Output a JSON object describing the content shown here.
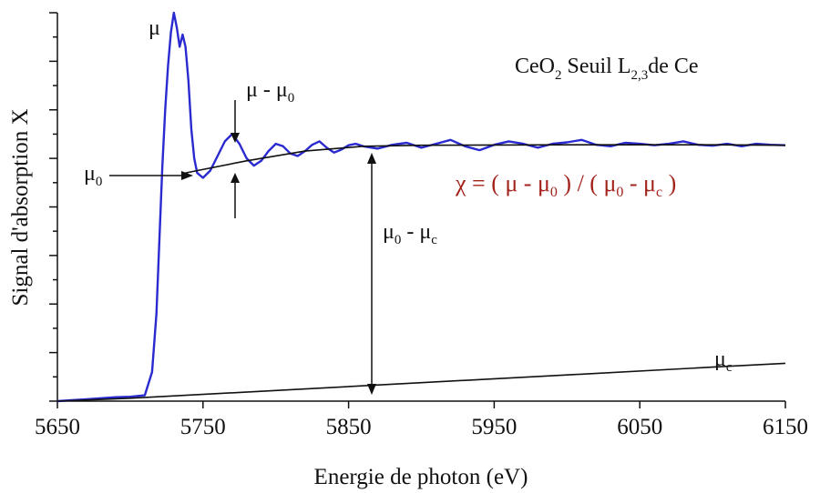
{
  "chart_data": {
    "type": "line",
    "title": "",
    "xlabel": "Energie de photon (eV)",
    "ylabel": "Signal d'absorption X",
    "xlim": [
      5650,
      6150
    ],
    "ylim": [
      0,
      8
    ],
    "x_ticks": [
      "5650",
      "5750",
      "5850",
      "5950",
      "6050",
      "6150"
    ],
    "y_tick_count": 9,
    "y_tick_labels_shown": false,
    "grid": false,
    "series": [
      {
        "name": "",
        "color": "#2a2ad0",
        "x": [
          5650,
          5670,
          5690,
          5700,
          5710,
          5715,
          5718,
          5720,
          5722,
          5724,
          5726,
          5728,
          5730,
          5732,
          5734,
          5736,
          5738,
          5740,
          5742,
          5744,
          5746,
          5748,
          5750,
          5755,
          5760,
          5765,
          5770,
          5775,
          5780,
          5785,
          5790,
          5795,
          5800,
          5805,
          5810,
          5815,
          5820,
          5825,
          5830,
          5835,
          5840,
          5845,
          5850,
          5855,
          5860,
          5870,
          5880,
          5890,
          5900,
          5910,
          5920,
          5930,
          5940,
          5950,
          5960,
          5970,
          5980,
          5990,
          6000,
          6010,
          6020,
          6030,
          6040,
          6050,
          6060,
          6070,
          6080,
          6090,
          6100,
          6110,
          6120,
          6130,
          6140,
          6150
        ],
        "y": [
          0.0,
          0.04,
          0.08,
          0.09,
          0.12,
          0.6,
          1.8,
          3.3,
          4.8,
          6.0,
          6.9,
          7.6,
          8.0,
          7.7,
          7.3,
          7.55,
          7.3,
          6.6,
          5.6,
          5.0,
          4.7,
          4.65,
          4.6,
          4.75,
          5.05,
          5.35,
          5.5,
          5.3,
          5.0,
          4.85,
          4.95,
          5.15,
          5.3,
          5.25,
          5.1,
          5.05,
          5.15,
          5.28,
          5.35,
          5.22,
          5.12,
          5.18,
          5.27,
          5.3,
          5.25,
          5.2,
          5.28,
          5.32,
          5.22,
          5.3,
          5.38,
          5.25,
          5.17,
          5.28,
          5.35,
          5.3,
          5.22,
          5.3,
          5.33,
          5.38,
          5.28,
          5.25,
          5.32,
          5.3,
          5.27,
          5.3,
          5.35,
          5.28,
          5.26,
          5.3,
          5.25,
          5.3,
          5.28,
          5.27
        ]
      },
      {
        "name": "",
        "color": "#111111",
        "x": [
          5738,
          5780,
          5820,
          5860,
          5900,
          6000,
          6100,
          6150
        ],
        "y": [
          4.7,
          4.95,
          5.15,
          5.25,
          5.27,
          5.28,
          5.28,
          5.27
        ]
      },
      {
        "name": "",
        "color": "#111111",
        "x": [
          5650,
          5700,
          5800,
          5900,
          6000,
          6100,
          6150
        ],
        "y": [
          0.0,
          0.06,
          0.22,
          0.38,
          0.54,
          0.7,
          0.78
        ]
      }
    ],
    "annotations": {
      "sample": "CeO",
      "sample_subscript": "2",
      "edge_text": " Seuil L",
      "edge_subscript": "2,3",
      "edge_suffix": "de Ce",
      "mu_label": "μ",
      "mu_minus_mu0": "μ - μ",
      "mu0_sub": "0",
      "mu0_symbol": "μ",
      "mu0_minus_muc_a": "μ",
      "mu0_minus_muc_b": " - μ",
      "muc_sub": "c",
      "muc_symbol": "μ",
      "chi_formula_parts": [
        "χ = ( μ - μ",
        "0",
        "   ) / ( μ",
        "0",
        " - μ",
        "c",
        "  )"
      ]
    }
  }
}
